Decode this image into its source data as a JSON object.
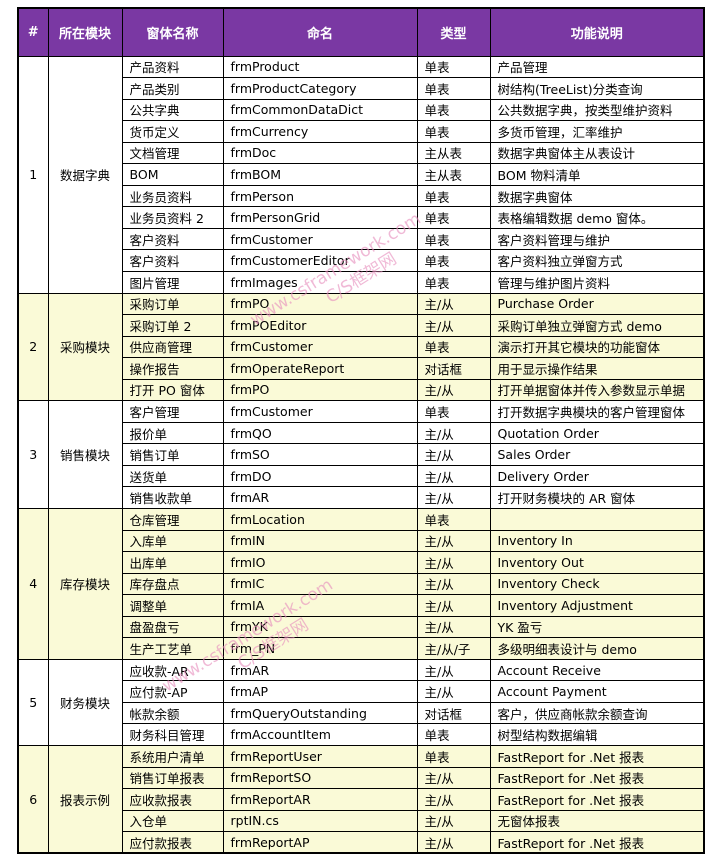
{
  "table": {
    "columns": [
      "#",
      "所在模块",
      "窗体名称",
      "命名",
      "类型",
      "功能说明"
    ]
  },
  "colors": {
    "header_bg": "#7A38A3",
    "header_text": "#FFFFFF",
    "band_yellow": "#FAFAD7",
    "band_white": "#FFFFFF",
    "border": "#000000",
    "watermark": "#E78FBE"
  },
  "watermark": {
    "line1": "www.csframework.com",
    "line2": "C/S框架网"
  },
  "modules": [
    {
      "no": "1",
      "name": "数据字典",
      "band": "white",
      "rows": [
        {
          "form": "产品资料",
          "code": "frmProduct",
          "type": "单表",
          "desc": "产品管理"
        },
        {
          "form": "产品类别",
          "code": "frmProductCategory",
          "type": "单表",
          "desc": "树结构(TreeList)分类查询"
        },
        {
          "form": "公共字典",
          "code": "frmCommonDataDict",
          "type": "单表",
          "desc": "公共数据字典，按类型维护资料"
        },
        {
          "form": "货币定义",
          "code": "frmCurrency",
          "type": "单表",
          "desc": "多货币管理，汇率维护"
        },
        {
          "form": "文档管理",
          "code": "frmDoc",
          "type": "主从表",
          "desc": "数据字典窗体主从表设计"
        },
        {
          "form": "BOM",
          "code": "frmBOM",
          "type": "主从表",
          "desc": "BOM 物料清单"
        },
        {
          "form": "业务员资料",
          "code": "frmPerson",
          "type": "单表",
          "desc": "数据字典窗体"
        },
        {
          "form": "业务员资料 2",
          "code": "frmPersonGrid",
          "type": "单表",
          "desc": "表格编辑数据 demo 窗体。"
        },
        {
          "form": "客户资料",
          "code": "frmCustomer",
          "type": "单表",
          "desc": "客户资料管理与维护"
        },
        {
          "form": "客户资料",
          "code": "frmCustomerEditor",
          "type": "单表",
          "desc": "客户资料独立弹窗方式"
        },
        {
          "form": "图片管理",
          "code": "frmImages",
          "type": "单表",
          "desc": "管理与维护图片资料"
        }
      ]
    },
    {
      "no": "2",
      "name": "采购模块",
      "band": "yellow",
      "rows": [
        {
          "form": "采购订单",
          "code": "frmPO",
          "type": "主/从",
          "desc": "Purchase Order"
        },
        {
          "form": "采购订单 2",
          "code": "frmPOEditor",
          "type": "主/从",
          "desc": "采购订单独立弹窗方式 demo"
        },
        {
          "form": "供应商管理",
          "code": "frmCustomer",
          "type": "单表",
          "desc": "演示打开其它模块的功能窗体"
        },
        {
          "form": "操作报告",
          "code": "frmOperateReport",
          "type": "对话框",
          "desc": "用于显示操作结果"
        },
        {
          "form": "打开 PO 窗体",
          "code": "frmPO",
          "type": "主/从",
          "desc": "打开单据窗体并传入参数显示单据"
        }
      ]
    },
    {
      "no": "3",
      "name": "销售模块",
      "band": "white",
      "rows": [
        {
          "form": "客户管理",
          "code": "frmCustomer",
          "type": "单表",
          "desc": "打开数据字典模块的客户管理窗体"
        },
        {
          "form": "报价单",
          "code": "frmQO",
          "type": "主/从",
          "desc": "Quotation Order"
        },
        {
          "form": "销售订单",
          "code": "frmSO",
          "type": "主/从",
          "desc": "Sales Order"
        },
        {
          "form": "送货单",
          "code": "frmDO",
          "type": "主/从",
          "desc": "Delivery Order"
        },
        {
          "form": "销售收款单",
          "code": "frmAR",
          "type": "主/从",
          "desc": "打开财务模块的 AR 窗体"
        }
      ]
    },
    {
      "no": "4",
      "name": "库存模块",
      "band": "yellow",
      "rows": [
        {
          "form": "仓库管理",
          "code": "frmLocation",
          "type": "单表",
          "desc": ""
        },
        {
          "form": "入库单",
          "code": "frmIN",
          "type": "主/从",
          "desc": "Inventory In"
        },
        {
          "form": "出库单",
          "code": "frmIO",
          "type": "主/从",
          "desc": "Inventory Out"
        },
        {
          "form": "库存盘点",
          "code": "frmIC",
          "type": "主/从",
          "desc": "Inventory Check"
        },
        {
          "form": "调整单",
          "code": "frmIA",
          "type": "主/从",
          "desc": "Inventory Adjustment"
        },
        {
          "form": "盘盈盘亏",
          "code": "frmYK",
          "type": "主/从",
          "desc": "YK 盈亏"
        },
        {
          "form": "生产工艺单",
          "code": "frm_PN",
          "type": "主/从/子",
          "desc": "多级明细表设计与 demo"
        }
      ]
    },
    {
      "no": "5",
      "name": "财务模块",
      "band": "white",
      "rows": [
        {
          "form": "应收款-AR",
          "code": "frmAR",
          "type": "主/从",
          "desc": "Account Receive"
        },
        {
          "form": "应付款-AP",
          "code": "frmAP",
          "type": "主/从",
          "desc": "Account Payment"
        },
        {
          "form": "帐款余额",
          "code": "frmQueryOutstanding",
          "type": "对话框",
          "desc": "客户，供应商帐款余额查询"
        },
        {
          "form": "财务科目管理",
          "code": "frmAccountItem",
          "type": "单表",
          "desc": "树型结构数据编辑"
        }
      ]
    },
    {
      "no": "6",
      "name": "报表示例",
      "band": "yellow",
      "rows": [
        {
          "form": "系统用户清单",
          "code": "frmReportUser",
          "type": "单表",
          "desc": "FastReport for .Net 报表"
        },
        {
          "form": "销售订单报表",
          "code": "frmReportSO",
          "type": "主/从",
          "desc": "FastReport for .Net 报表"
        },
        {
          "form": "应收款报表",
          "code": "frmReportAR",
          "type": "主/从",
          "desc": "FastReport for .Net 报表"
        },
        {
          "form": "入仓单",
          "code": "rptIN.cs",
          "type": "主/从",
          "desc": "无窗体报表"
        },
        {
          "form": "应付款报表",
          "code": "frmReportAP",
          "type": "主/从",
          "desc": "FastReport for .Net 报表"
        }
      ]
    }
  ]
}
